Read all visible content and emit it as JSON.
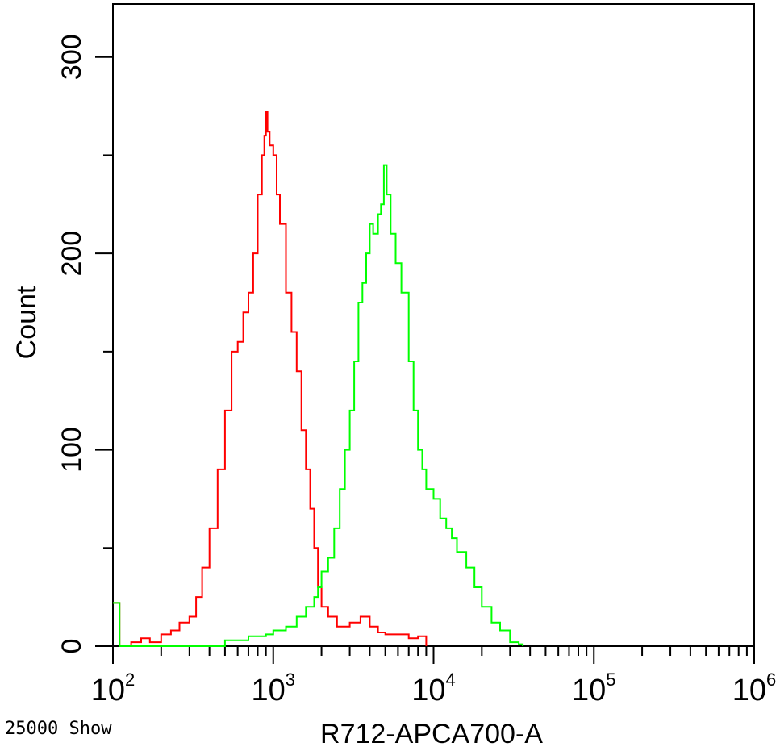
{
  "chart_data": {
    "type": "line",
    "title": "",
    "xlabel": "R712-APCA700-A",
    "ylabel": "Count",
    "x_scale": "log",
    "xlim": [
      100,
      1000000
    ],
    "ylim": [
      0,
      327
    ],
    "x_ticks": [
      {
        "base": "10",
        "exp": "2",
        "value": 100
      },
      {
        "base": "10",
        "exp": "3",
        "value": 1000
      },
      {
        "base": "10",
        "exp": "4",
        "value": 10000
      },
      {
        "base": "10",
        "exp": "5",
        "value": 100000
      },
      {
        "base": "10",
        "exp": "6",
        "value": 1000000
      }
    ],
    "y_ticks": [
      {
        "label": "0",
        "value": 0
      },
      {
        "label": "100",
        "value": 100
      },
      {
        "label": "200",
        "value": 200
      },
      {
        "label": "300",
        "value": 300
      }
    ],
    "grid": false,
    "legend": "none",
    "series": [
      {
        "color": "#ff0000",
        "points": [
          [
            100,
            22
          ],
          [
            110,
            0
          ],
          [
            130,
            2
          ],
          [
            150,
            4
          ],
          [
            170,
            2
          ],
          [
            200,
            6
          ],
          [
            230,
            8
          ],
          [
            260,
            12
          ],
          [
            300,
            15
          ],
          [
            330,
            25
          ],
          [
            360,
            40
          ],
          [
            400,
            60
          ],
          [
            450,
            90
          ],
          [
            500,
            120
          ],
          [
            550,
            150
          ],
          [
            600,
            155
          ],
          [
            650,
            170
          ],
          [
            700,
            180
          ],
          [
            750,
            200
          ],
          [
            800,
            230
          ],
          [
            850,
            250
          ],
          [
            880,
            260
          ],
          [
            900,
            272
          ],
          [
            920,
            262
          ],
          [
            950,
            255
          ],
          [
            1000,
            250
          ],
          [
            1050,
            230
          ],
          [
            1100,
            215
          ],
          [
            1200,
            180
          ],
          [
            1300,
            160
          ],
          [
            1400,
            140
          ],
          [
            1500,
            110
          ],
          [
            1600,
            90
          ],
          [
            1700,
            70
          ],
          [
            1800,
            50
          ],
          [
            1900,
            30
          ],
          [
            2000,
            20
          ],
          [
            2200,
            15
          ],
          [
            2500,
            10
          ],
          [
            3000,
            12
          ],
          [
            3500,
            15
          ],
          [
            4000,
            10
          ],
          [
            4500,
            7
          ],
          [
            5000,
            6
          ],
          [
            6000,
            6
          ],
          [
            7000,
            4
          ],
          [
            8000,
            5
          ],
          [
            9000,
            0
          ]
        ]
      },
      {
        "color": "#00ff00",
        "points": [
          [
            100,
            22
          ],
          [
            110,
            0
          ],
          [
            300,
            0
          ],
          [
            500,
            3
          ],
          [
            700,
            5
          ],
          [
            900,
            6
          ],
          [
            1000,
            8
          ],
          [
            1200,
            10
          ],
          [
            1400,
            15
          ],
          [
            1600,
            20
          ],
          [
            1800,
            25
          ],
          [
            1900,
            30
          ],
          [
            2000,
            38
          ],
          [
            2200,
            45
          ],
          [
            2400,
            60
          ],
          [
            2600,
            80
          ],
          [
            2800,
            100
          ],
          [
            3000,
            120
          ],
          [
            3200,
            145
          ],
          [
            3400,
            175
          ],
          [
            3600,
            185
          ],
          [
            3800,
            200
          ],
          [
            4000,
            215
          ],
          [
            4200,
            210
          ],
          [
            4500,
            220
          ],
          [
            4700,
            225
          ],
          [
            4900,
            245
          ],
          [
            5100,
            230
          ],
          [
            5400,
            210
          ],
          [
            5800,
            195
          ],
          [
            6300,
            180
          ],
          [
            7000,
            145
          ],
          [
            7500,
            120
          ],
          [
            8000,
            100
          ],
          [
            8500,
            90
          ],
          [
            9000,
            80
          ],
          [
            10000,
            75
          ],
          [
            11000,
            65
          ],
          [
            12000,
            60
          ],
          [
            13000,
            55
          ],
          [
            14000,
            48
          ],
          [
            16000,
            40
          ],
          [
            18000,
            30
          ],
          [
            20000,
            20
          ],
          [
            23000,
            12
          ],
          [
            26000,
            8
          ],
          [
            30000,
            2
          ],
          [
            34000,
            1
          ],
          [
            36000,
            0
          ]
        ]
      }
    ]
  },
  "footer": {
    "note": "25000 Show"
  }
}
